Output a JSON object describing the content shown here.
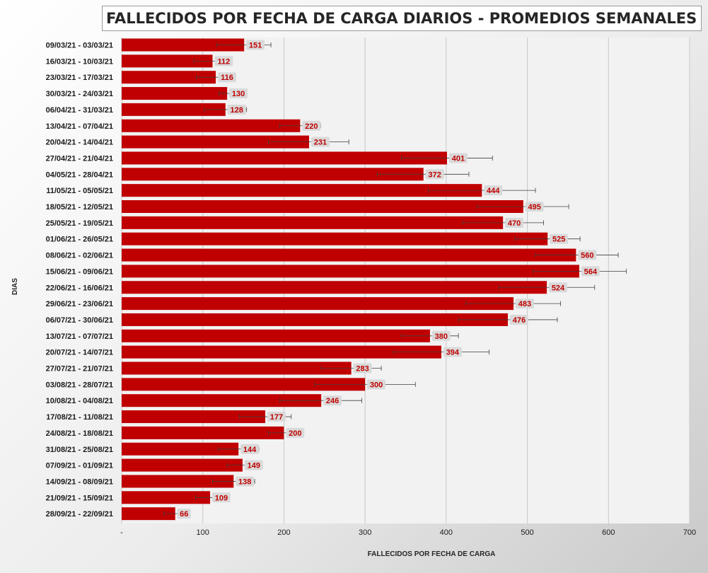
{
  "chart_data": {
    "type": "bar",
    "orientation": "horizontal",
    "title": "FALLECIDOS POR FECHA DE CARGA DIARIOS - PROMEDIOS SEMANALES",
    "xlabel": "FALLECIDOS POR FECHA DE CARGA",
    "ylabel": "DIAS",
    "xlim": [
      0,
      700
    ],
    "xticks": [
      "-",
      "100",
      "200",
      "300",
      "400",
      "500",
      "600",
      "700"
    ],
    "grid": "vertical",
    "legend": "none",
    "bar_color": "#c00000",
    "label_color": "#c00000",
    "categories": [
      "09/03/21 - 03/03/21",
      "16/03/21 - 10/03/21",
      "23/03/21 - 17/03/21",
      "30/03/21 - 24/03/21",
      "06/04/21 - 31/03/21",
      "13/04/21 - 07/04/21",
      "20/04/21 - 14/04/21",
      "27/04/21 - 21/04/21",
      "04/05/21 - 28/04/21",
      "11/05/21 - 05/05/21",
      "18/05/21 - 12/05/21",
      "25/05/21 - 19/05/21",
      "01/06/21 - 26/05/21",
      "08/06/21 - 02/06/21",
      "15/06/21 - 09/06/21",
      "22/06/21 - 16/06/21",
      "29/06/21 - 23/06/21",
      "06/07/21 - 30/06/21",
      "13/07/21 - 07/07/21",
      "20/07/21 - 14/07/21",
      "27/07/21 - 21/07/21",
      "03/08/21 - 28/07/21",
      "10/08/21 - 04/08/21",
      "17/08/21 - 11/08/21",
      "24/08/21 - 18/08/21",
      "31/08/21 - 25/08/21",
      "07/09/21 - 01/09/21",
      "14/09/21 - 08/09/21",
      "21/09/21 - 15/09/21",
      "28/09/21 - 22/09/21"
    ],
    "values": [
      151,
      112,
      116,
      130,
      128,
      220,
      231,
      401,
      372,
      444,
      495,
      470,
      525,
      560,
      564,
      524,
      483,
      476,
      380,
      394,
      283,
      300,
      246,
      177,
      200,
      144,
      149,
      138,
      109,
      66
    ],
    "error_low": [
      117,
      89,
      92,
      120,
      102,
      195,
      181,
      345,
      315,
      378,
      438,
      420,
      485,
      510,
      507,
      465,
      424,
      415,
      345,
      335,
      246,
      238,
      195,
      145,
      181,
      119,
      130,
      112,
      91,
      52
    ],
    "error_high": [
      184,
      135,
      140,
      140,
      154,
      245,
      280,
      457,
      428,
      510,
      551,
      520,
      565,
      612,
      622,
      583,
      541,
      537,
      415,
      453,
      320,
      362,
      296,
      209,
      219,
      169,
      168,
      164,
      127,
      79
    ]
  }
}
